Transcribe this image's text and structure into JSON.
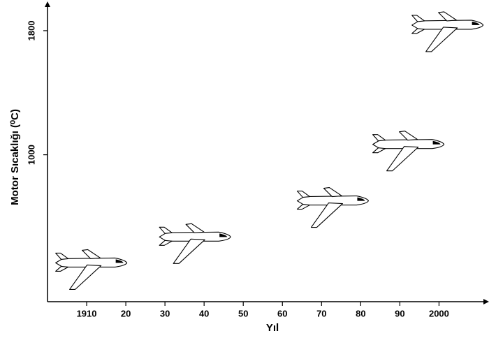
{
  "chart_data": {
    "type": "scatter",
    "x_label": "Yıl",
    "y_label": "Motor Sıcaklığı (⁰C)",
    "x": [
      1911,
      1937.5,
      1972.7,
      1992,
      2002
    ],
    "values": [
      303,
      470,
      703,
      1067,
      1836
    ],
    "xlim": [
      1900,
      2012.5
    ],
    "ylim": [
      50,
      1950
    ],
    "xticks": [
      {
        "value": 1910,
        "label": "1910"
      },
      {
        "value": 1920,
        "label": "20"
      },
      {
        "value": 1930,
        "label": "30"
      },
      {
        "value": 1940,
        "label": "40"
      },
      {
        "value": 1950,
        "label": "50"
      },
      {
        "value": 1960,
        "label": "60"
      },
      {
        "value": 1970,
        "label": "70"
      },
      {
        "value": 1980,
        "label": "80"
      },
      {
        "value": 1990,
        "label": "90"
      },
      {
        "value": 2000,
        "label": "2000"
      }
    ],
    "yticks": [
      1000,
      1800
    ],
    "color": "#000000"
  }
}
